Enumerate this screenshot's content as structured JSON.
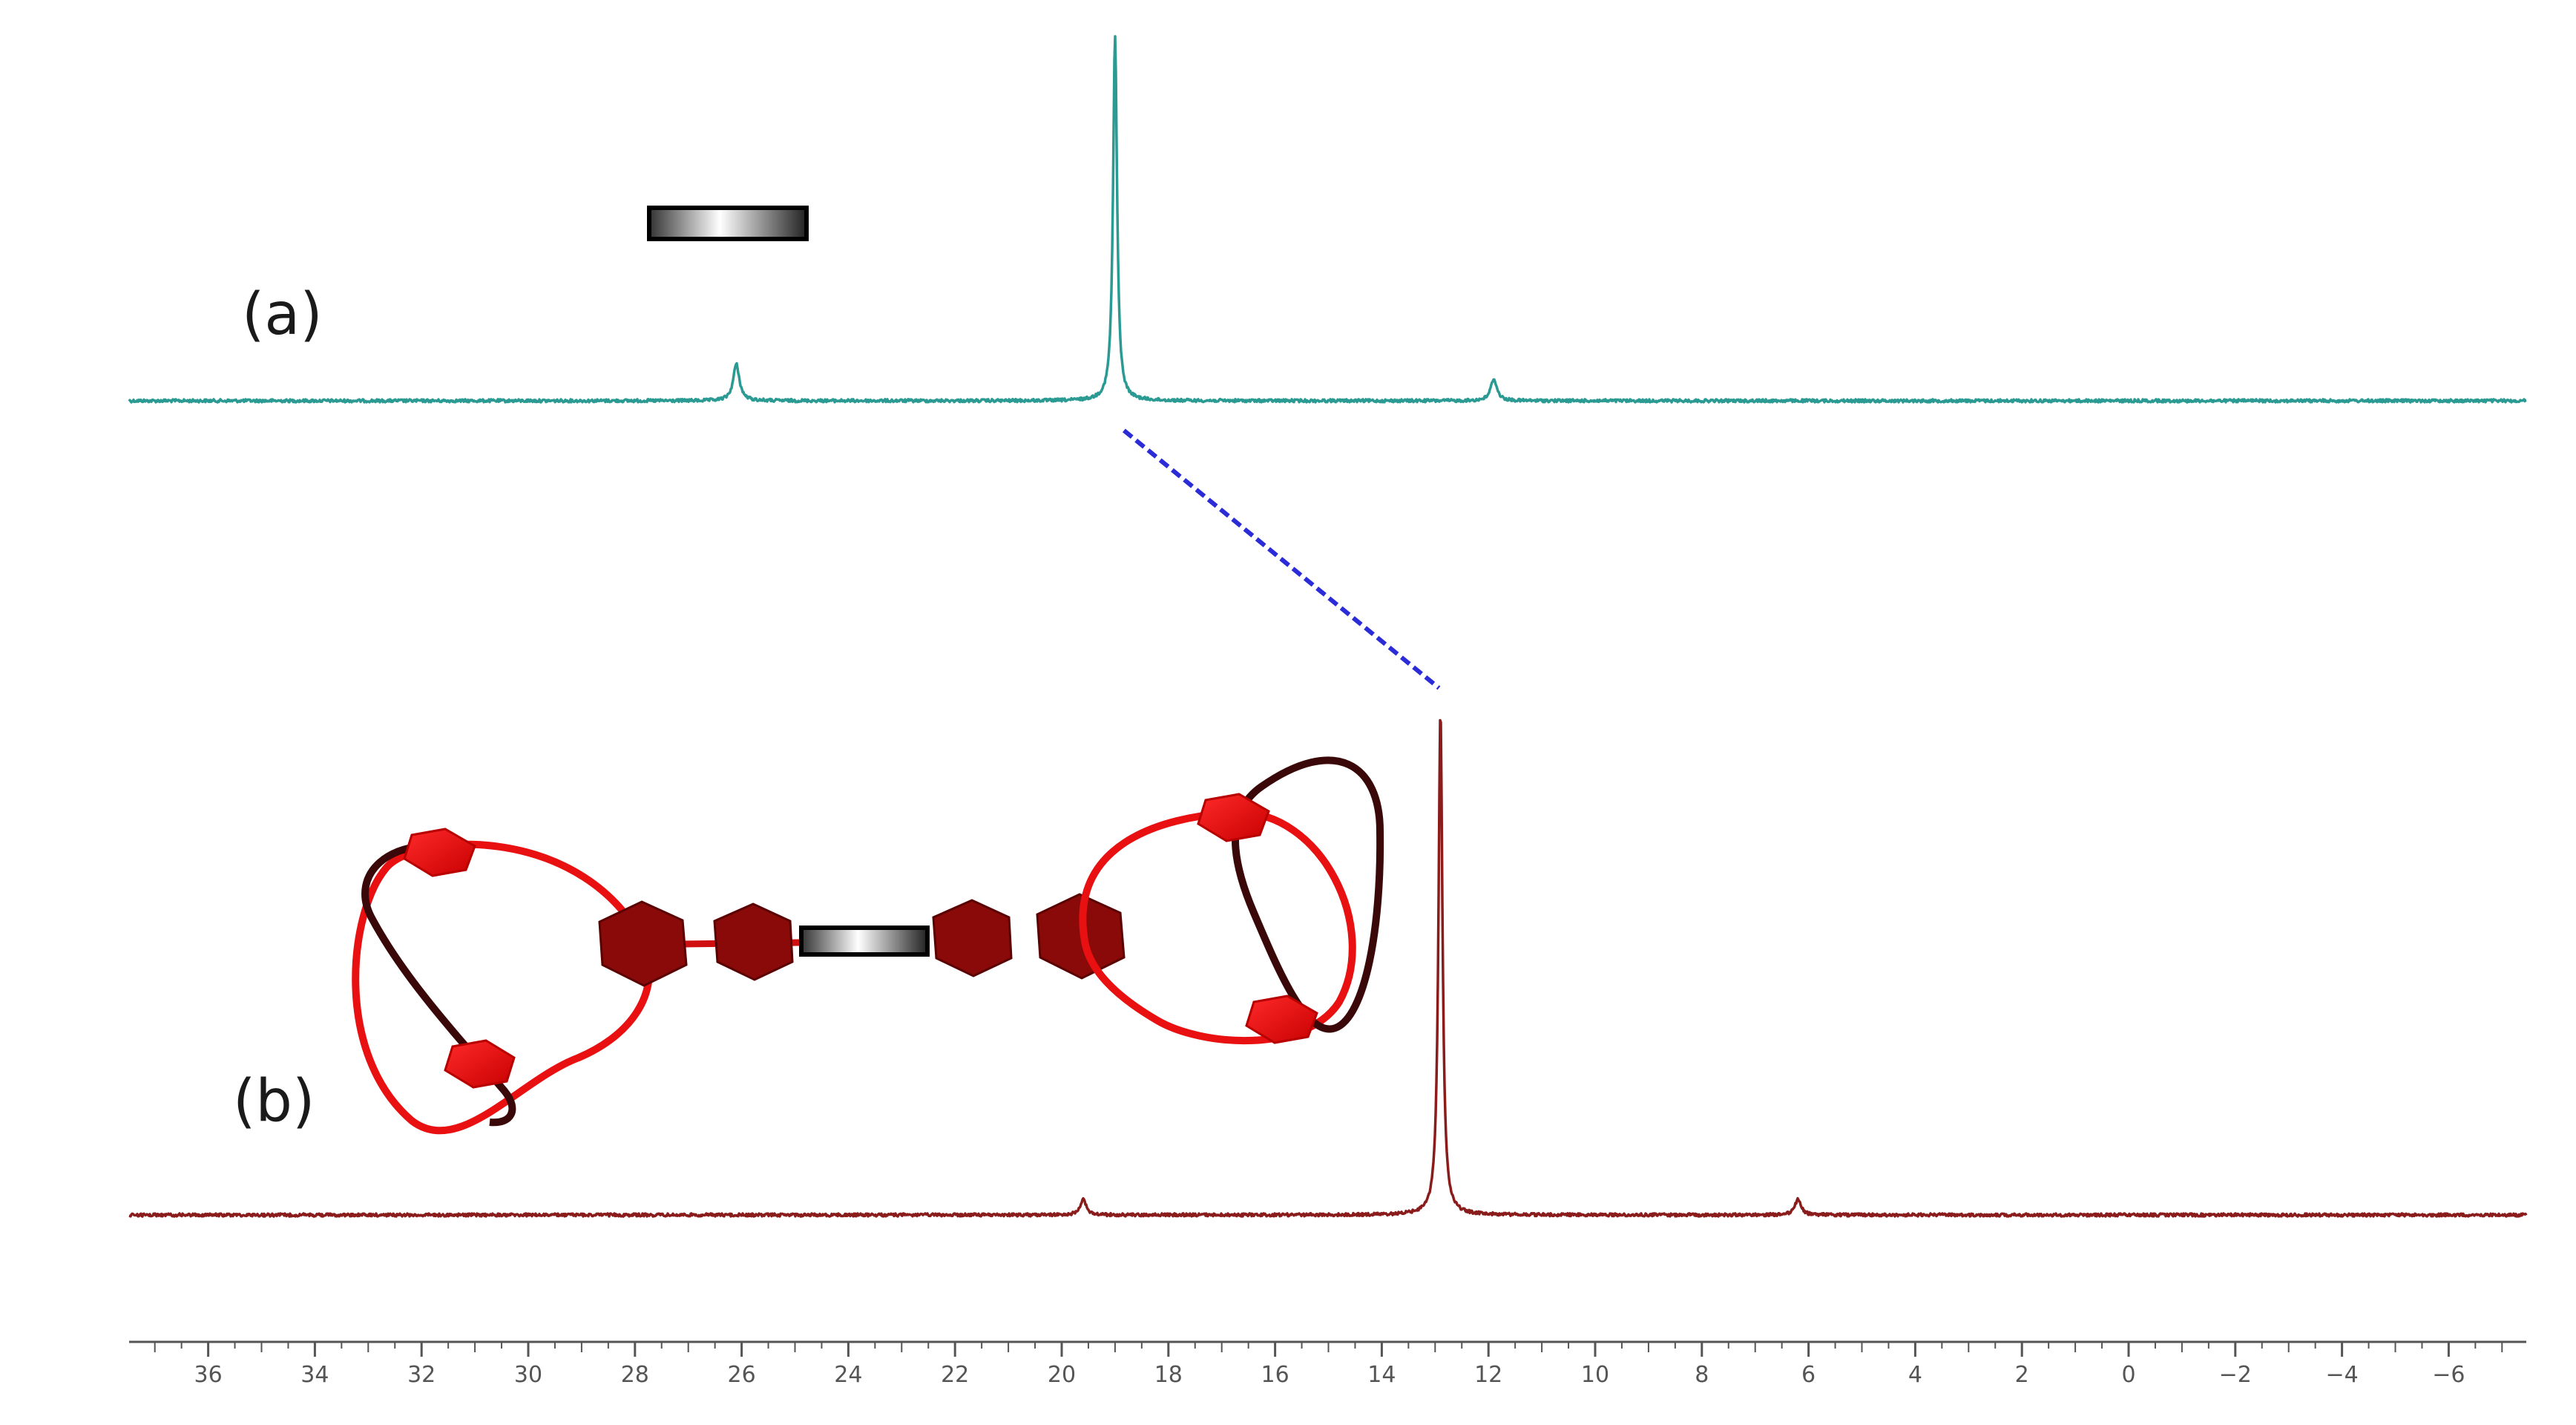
{
  "chart_data": {
    "type": "line",
    "title": "",
    "xlabel": "",
    "ylabel": "",
    "x_axis": {
      "reversed": true,
      "xlim": [
        37.5,
        -7.5
      ],
      "major_ticks": [
        36,
        34,
        32,
        30,
        28,
        26,
        24,
        22,
        20,
        18,
        16,
        14,
        12,
        10,
        8,
        6,
        4,
        2,
        0,
        -2,
        -4,
        -6
      ],
      "tick_labels": [
        "36",
        "34",
        "32",
        "30",
        "28",
        "26",
        "24",
        "22",
        "20",
        "18",
        "16",
        "14",
        "12",
        "10",
        "8",
        "6",
        "4",
        "2",
        "0",
        "−2",
        "−4",
        "−6"
      ],
      "minor_tick_step": 0.5
    },
    "series": [
      {
        "label": "(a)",
        "color": "#2a9a93",
        "peaks": [
          {
            "ppm": 26.1,
            "rel_height": 0.1
          },
          {
            "ppm": 19.0,
            "rel_height": 1.0
          },
          {
            "ppm": 11.9,
            "rel_height": 0.06
          }
        ]
      },
      {
        "label": "(b)",
        "color": "#8b1c1c",
        "peaks": [
          {
            "ppm": 19.6,
            "rel_height": 0.03
          },
          {
            "ppm": 12.9,
            "rel_height": 1.0
          },
          {
            "ppm": 6.2,
            "rel_height": 0.03
          }
        ]
      }
    ],
    "annotations": [
      {
        "type": "dashed-line",
        "color": "#2b2bd8",
        "from_ppm": 19.0,
        "to_ppm": 12.9,
        "from_series": "(a)",
        "to_series": "(b)"
      },
      {
        "type": "graphic",
        "description": "gradient rod",
        "series": "(a)"
      },
      {
        "type": "graphic",
        "description": "red figure-eight rings with hexagonal beads and central rod",
        "series": "(b)"
      }
    ],
    "grid": false,
    "legend": "none"
  }
}
